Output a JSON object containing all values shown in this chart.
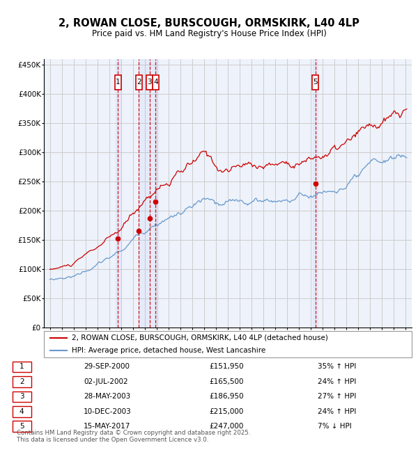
{
  "title": "2, ROWAN CLOSE, BURSCOUGH, ORMSKIRK, L40 4LP",
  "subtitle": "Price paid vs. HM Land Registry's House Price Index (HPI)",
  "property_label": "2, ROWAN CLOSE, BURSCOUGH, ORMSKIRK, L40 4LP (detached house)",
  "hpi_label": "HPI: Average price, detached house, West Lancashire",
  "footer": "Contains HM Land Registry data © Crown copyright and database right 2025.\nThis data is licensed under the Open Government Licence v3.0.",
  "sale_events": [
    {
      "num": 1,
      "date": "29-SEP-2000",
      "price": 151950,
      "hpi_rel": "35% ↑ HPI"
    },
    {
      "num": 2,
      "date": "02-JUL-2002",
      "price": 165500,
      "hpi_rel": "24% ↑ HPI"
    },
    {
      "num": 3,
      "date": "28-MAY-2003",
      "price": 186950,
      "hpi_rel": "27% ↑ HPI"
    },
    {
      "num": 4,
      "date": "10-DEC-2003",
      "price": 215000,
      "hpi_rel": "24% ↑ HPI"
    },
    {
      "num": 5,
      "date": "15-MAY-2017",
      "price": 247000,
      "hpi_rel": "7% ↓ HPI"
    }
  ],
  "sale_dates_x": [
    2000.75,
    2002.5,
    2003.4,
    2003.92,
    2017.37
  ],
  "sale_prices_y": [
    151950,
    165500,
    186950,
    215000,
    247000
  ],
  "ylim": [
    0,
    460000
  ],
  "yticks": [
    0,
    50000,
    100000,
    150000,
    200000,
    250000,
    300000,
    350000,
    400000,
    450000
  ],
  "ytick_labels": [
    "£0",
    "£50K",
    "£100K",
    "£150K",
    "£200K",
    "£250K",
    "£300K",
    "£350K",
    "£400K",
    "£450K"
  ],
  "xlim": [
    1994.5,
    2025.5
  ],
  "property_color": "#cc0000",
  "hpi_color": "#6699cc",
  "vline_color": "#cc0000",
  "grid_color": "#cccccc",
  "background_color": "#ffffff",
  "plot_bg_color": "#eef2fb"
}
